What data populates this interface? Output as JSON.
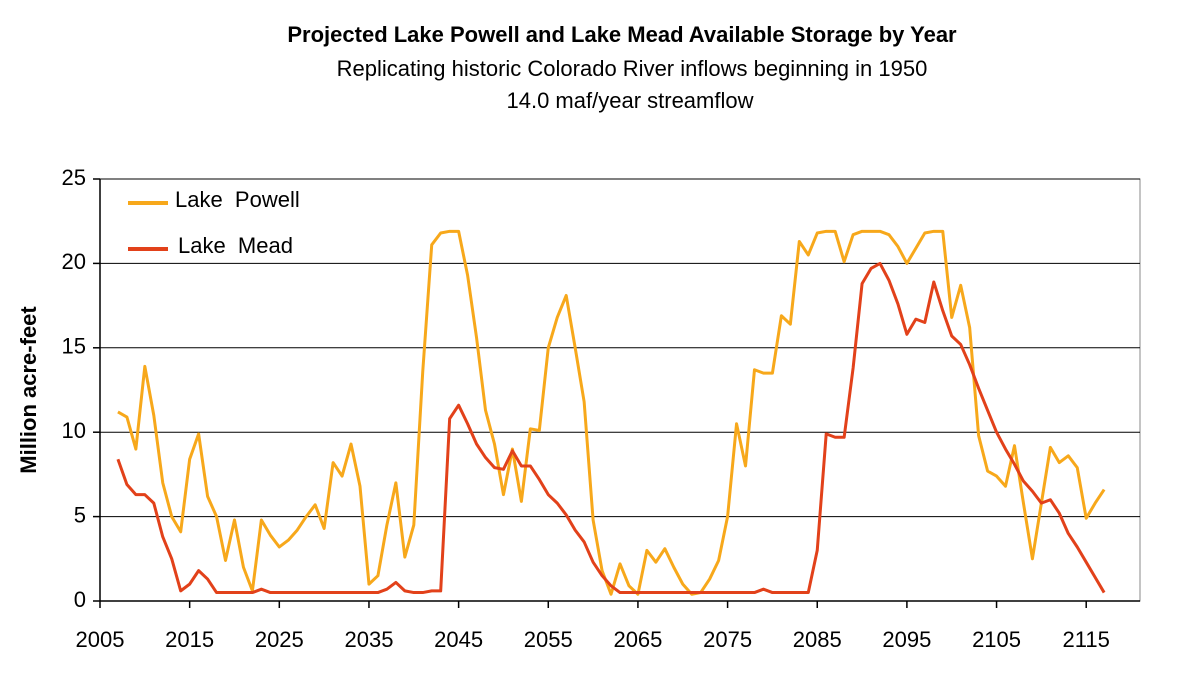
{
  "chart_data": {
    "type": "line",
    "title": "Projected Lake Powell and Lake Mead Available Storage by Year",
    "subtitle": [
      "Replicating historic Colorado River inflows beginning in 1950",
      "14.0 maf/year streamflow"
    ],
    "y_label": "Million acre-feet",
    "x": [
      2007,
      2008,
      2009,
      2010,
      2011,
      2012,
      2013,
      2014,
      2015,
      2016,
      2017,
      2018,
      2019,
      2020,
      2021,
      2022,
      2023,
      2024,
      2025,
      2026,
      2027,
      2028,
      2029,
      2030,
      2031,
      2032,
      2033,
      2034,
      2035,
      2036,
      2037,
      2038,
      2039,
      2040,
      2041,
      2042,
      2043,
      2044,
      2045,
      2046,
      2047,
      2048,
      2049,
      2050,
      2051,
      2052,
      2053,
      2054,
      2055,
      2056,
      2057,
      2058,
      2059,
      2060,
      2061,
      2062,
      2063,
      2064,
      2065,
      2066,
      2067,
      2068,
      2069,
      2070,
      2071,
      2072,
      2073,
      2074,
      2075,
      2076,
      2077,
      2078,
      2079,
      2080,
      2081,
      2082,
      2083,
      2084,
      2085,
      2086,
      2087,
      2088,
      2089,
      2090,
      2091,
      2092,
      2093,
      2094,
      2095,
      2096,
      2097,
      2098,
      2099,
      2100,
      2101,
      2102,
      2103,
      2104,
      2105,
      2106,
      2107,
      2108,
      2109,
      2110,
      2111,
      2112,
      2113,
      2114,
      2115,
      2116,
      2117
    ],
    "series": [
      {
        "name": "Lake  Powell",
        "color": "#f7a81b",
        "values": [
          11.2,
          10.9,
          9.0,
          13.9,
          11.0,
          7.0,
          5.0,
          4.1,
          8.4,
          9.9,
          6.2,
          5.0,
          2.4,
          4.8,
          2.0,
          0.6,
          4.8,
          3.9,
          3.2,
          3.6,
          4.2,
          5.0,
          5.7,
          4.3,
          8.2,
          7.4,
          9.3,
          6.8,
          1.0,
          1.5,
          4.5,
          7.0,
          2.6,
          4.5,
          13.6,
          21.1,
          21.8,
          21.9,
          21.9,
          19.3,
          15.6,
          11.3,
          9.3,
          6.3,
          9.0,
          5.9,
          10.2,
          10.1,
          15.0,
          16.8,
          18.1,
          15.0,
          11.8,
          4.8,
          1.8,
          0.4,
          2.2,
          0.9,
          0.4,
          3.0,
          2.3,
          3.1,
          2.0,
          1.0,
          0.4,
          0.5,
          1.3,
          2.4,
          5.0,
          10.5,
          8.0,
          13.7,
          13.5,
          13.5,
          16.9,
          16.4,
          21.3,
          20.5,
          21.8,
          21.9,
          21.9,
          20.1,
          21.7,
          21.9,
          21.9,
          21.9,
          21.7,
          21.0,
          20.0,
          20.9,
          21.8,
          21.9,
          21.9,
          16.8,
          18.7,
          16.2,
          9.8,
          7.7,
          7.4,
          6.8,
          9.2,
          5.8,
          2.5,
          5.8,
          9.1,
          8.2,
          8.6,
          7.9,
          4.9,
          5.8,
          6.6
        ]
      },
      {
        "name": "Lake  Mead",
        "color": "#e2411a",
        "values": [
          8.4,
          6.9,
          6.3,
          6.3,
          5.8,
          3.8,
          2.5,
          0.6,
          1.0,
          1.8,
          1.3,
          0.5,
          0.5,
          0.5,
          0.5,
          0.5,
          0.7,
          0.5,
          0.5,
          0.5,
          0.5,
          0.5,
          0.5,
          0.5,
          0.5,
          0.5,
          0.5,
          0.5,
          0.5,
          0.5,
          0.7,
          1.1,
          0.6,
          0.5,
          0.5,
          0.6,
          0.6,
          10.8,
          11.6,
          10.5,
          9.3,
          8.5,
          7.9,
          7.8,
          8.9,
          8.0,
          8.0,
          7.2,
          6.3,
          5.8,
          5.1,
          4.2,
          3.5,
          2.3,
          1.5,
          0.9,
          0.5,
          0.5,
          0.5,
          0.5,
          0.5,
          0.5,
          0.5,
          0.5,
          0.5,
          0.5,
          0.5,
          0.5,
          0.5,
          0.5,
          0.5,
          0.5,
          0.7,
          0.5,
          0.5,
          0.5,
          0.5,
          0.5,
          3.0,
          9.9,
          9.7,
          9.7,
          13.8,
          18.8,
          19.7,
          20.0,
          19.0,
          17.6,
          15.8,
          16.7,
          16.5,
          18.9,
          17.2,
          15.7,
          15.2,
          14.0,
          12.6,
          11.3,
          10.0,
          9.0,
          8.1,
          7.1,
          6.5,
          5.8,
          6.0,
          5.2,
          4.0,
          3.2,
          2.3,
          1.4,
          0.5
        ]
      }
    ],
    "xlim": [
      2005,
      2121
    ],
    "xticks": [
      2005,
      2015,
      2025,
      2035,
      2045,
      2055,
      2065,
      2075,
      2085,
      2095,
      2105,
      2115
    ],
    "ylim": [
      0,
      25
    ],
    "yticks": [
      0,
      5,
      10,
      15,
      20,
      25
    ],
    "grid": true,
    "legend": "top-left"
  }
}
